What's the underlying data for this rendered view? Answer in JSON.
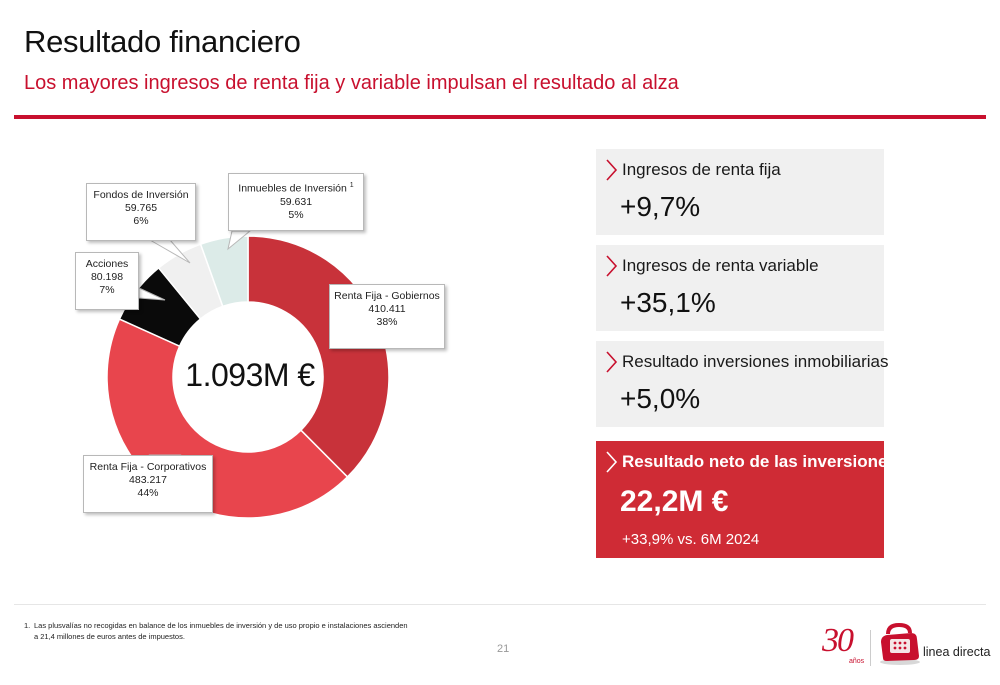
{
  "header": {
    "title": "Resultado financiero",
    "subtitle": "Los mayores ingresos de renta fija y variable impulsan el resultado al alza"
  },
  "colors": {
    "accent": "#c8102e",
    "gobiernos": "#c8323a",
    "corporativos": "#e8454d",
    "acciones": "#0a0a0a",
    "fondos": "#f0f0f0",
    "inmuebles": "#dcebe8",
    "kpi_bg": "#f0f0f0",
    "kpi_highlight": "#cf2b35"
  },
  "chart_data": {
    "type": "pie",
    "donut": true,
    "center_label": "1.093M €",
    "slices": [
      {
        "key": "gobiernos",
        "label": "Renta Fija - Gobiernos",
        "value": 410411,
        "value_label": "410.411",
        "pct_label": "38%"
      },
      {
        "key": "corporativos",
        "label": "Renta Fija - Corporativos",
        "value": 483217,
        "value_label": "483.217",
        "pct_label": "44%"
      },
      {
        "key": "acciones",
        "label": "Acciones",
        "value": 80198,
        "value_label": "80.198",
        "pct_label": "7%"
      },
      {
        "key": "fondos",
        "label": "Fondos de Inversión",
        "value": 59765,
        "value_label": "59.765",
        "pct_label": "6%"
      },
      {
        "key": "inmuebles",
        "label": "Inmuebles de Inversión",
        "label_sup": "1",
        "value": 59631,
        "value_label": "59.631",
        "pct_label": "5%"
      }
    ]
  },
  "kpis": [
    {
      "label": "Ingresos de renta fija",
      "value": "+9,7%"
    },
    {
      "label": "Ingresos de renta variable",
      "value": "+35,1%"
    },
    {
      "label": "Resultado inversiones inmobiliarias",
      "value": "+5,0%"
    }
  ],
  "highlight": {
    "label": "Resultado neto de las inversiones",
    "value": "22,2M €",
    "sub": "+33,9% vs. 6M 2024"
  },
  "footnote": {
    "number": "1.",
    "line1": "Las plusvalías no recogidas en balance de los inmuebles de inversión y de uso propio e instalaciones ascienden",
    "line2": "a 21,4 millones de euros antes de impuestos."
  },
  "page_number": "21",
  "logos": {
    "anniversary_number": "30",
    "anniversary_text": "años",
    "brand": "linea directa"
  }
}
